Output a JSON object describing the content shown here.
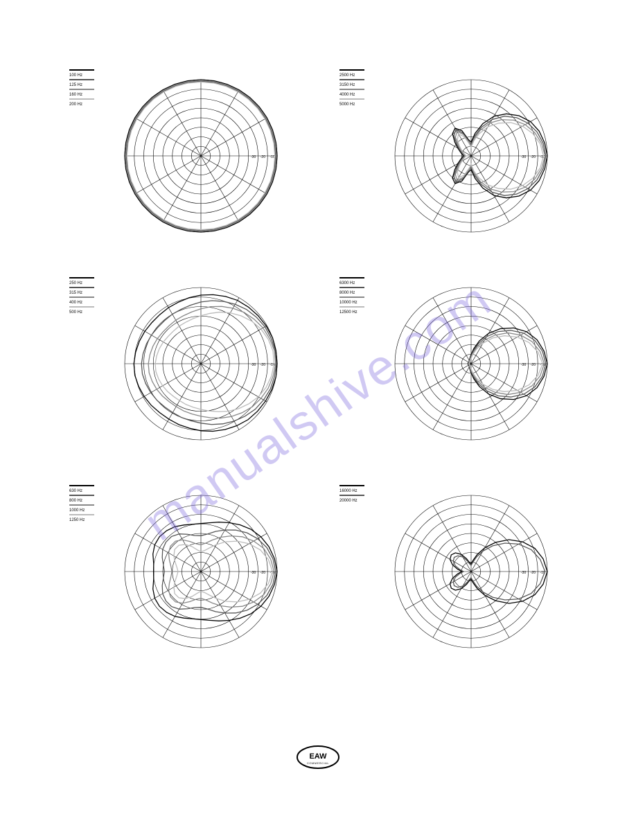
{
  "watermark_text": "manualshive.com",
  "watermark_color": "rgba(120,100,220,0.35)",
  "footer_logo_text": "EAW",
  "footer_logo_sub": "COMMERCIAL",
  "polar_grid": {
    "outer_radius": 110,
    "rings": 8,
    "spokes": 12,
    "stroke": "#000000",
    "stroke_width": 0.6,
    "tick_labels": [
      "-10",
      "-20",
      "-30"
    ],
    "tick_fontsize": 5
  },
  "series_colors": [
    "#000000",
    "#555555",
    "#888888",
    "#bbbbbb"
  ],
  "charts": [
    {
      "legend": [
        "100 Hz",
        "125 Hz",
        "160 Hz",
        "200 Hz"
      ],
      "series": [
        {
          "color": "#000000",
          "r": [
            1.0,
            1.0,
            1.0,
            1.0,
            1.0,
            1.0,
            1.0,
            1.0,
            1.0,
            1.0,
            1.0,
            1.0,
            1.0,
            1.0,
            1.0,
            1.0,
            1.0,
            1.0,
            1.0,
            1.0,
            1.0,
            1.0,
            1.0,
            1.0,
            1.0,
            1.0,
            1.0,
            1.0,
            1.0,
            1.0,
            1.0,
            1.0,
            1.0,
            1.0,
            1.0,
            1.0
          ]
        },
        {
          "color": "#555555",
          "r": [
            0.98,
            0.98,
            0.98,
            0.98,
            0.98,
            0.98,
            0.98,
            0.98,
            0.98,
            0.98,
            0.98,
            0.98,
            0.98,
            0.98,
            0.98,
            0.98,
            0.98,
            0.98,
            0.98,
            0.98,
            0.98,
            0.98,
            0.98,
            0.98,
            0.98,
            0.98,
            0.98,
            0.98,
            0.98,
            0.98,
            0.98,
            0.98,
            0.98,
            0.98,
            0.98,
            0.98
          ]
        },
        {
          "color": "#888888",
          "r": [
            0.99,
            0.99,
            0.99,
            0.99,
            0.99,
            0.99,
            0.99,
            0.99,
            0.99,
            0.99,
            0.99,
            0.99,
            0.99,
            0.99,
            0.99,
            0.99,
            0.99,
            0.99,
            0.99,
            0.99,
            0.99,
            0.99,
            0.99,
            0.99,
            0.99,
            0.99,
            0.99,
            0.99,
            0.99,
            0.99,
            0.99,
            0.99,
            0.99,
            0.99,
            0.99,
            0.99
          ]
        },
        {
          "color": "#bbbbbb",
          "r": [
            0.97,
            0.97,
            0.97,
            0.97,
            0.97,
            0.97,
            0.97,
            0.97,
            0.97,
            0.97,
            0.97,
            0.97,
            0.97,
            0.97,
            0.97,
            0.97,
            0.97,
            0.97,
            0.97,
            0.97,
            0.97,
            0.97,
            0.97,
            0.97,
            0.97,
            0.97,
            0.97,
            0.97,
            0.97,
            0.97,
            0.97,
            0.97,
            0.97,
            0.97,
            0.97,
            0.97
          ]
        }
      ]
    },
    {
      "legend": [
        "2500 Hz",
        "3150 Hz",
        "4000 Hz",
        "5000 Hz"
      ],
      "series": [
        {
          "color": "#000000",
          "r": [
            1.0,
            0.98,
            0.95,
            0.9,
            0.82,
            0.72,
            0.6,
            0.45,
            0.3,
            0.18,
            0.22,
            0.35,
            0.42,
            0.38,
            0.28,
            0.2,
            0.15,
            0.12,
            0.1,
            0.12,
            0.15,
            0.2,
            0.28,
            0.38,
            0.42,
            0.35,
            0.22,
            0.18,
            0.3,
            0.45,
            0.6,
            0.72,
            0.82,
            0.9,
            0.95,
            0.98
          ]
        },
        {
          "color": "#555555",
          "r": [
            0.98,
            0.96,
            0.92,
            0.86,
            0.78,
            0.68,
            0.55,
            0.4,
            0.26,
            0.15,
            0.2,
            0.32,
            0.4,
            0.35,
            0.25,
            0.18,
            0.13,
            0.1,
            0.08,
            0.1,
            0.13,
            0.18,
            0.25,
            0.35,
            0.4,
            0.32,
            0.2,
            0.15,
            0.26,
            0.4,
            0.55,
            0.68,
            0.78,
            0.86,
            0.92,
            0.96
          ]
        },
        {
          "color": "#888888",
          "r": [
            0.97,
            0.94,
            0.89,
            0.82,
            0.73,
            0.62,
            0.5,
            0.36,
            0.23,
            0.13,
            0.19,
            0.3,
            0.37,
            0.32,
            0.22,
            0.16,
            0.12,
            0.09,
            0.07,
            0.09,
            0.12,
            0.16,
            0.22,
            0.32,
            0.37,
            0.3,
            0.19,
            0.13,
            0.23,
            0.36,
            0.5,
            0.62,
            0.73,
            0.82,
            0.89,
            0.94
          ]
        },
        {
          "color": "#bbbbbb",
          "r": [
            0.95,
            0.92,
            0.86,
            0.78,
            0.68,
            0.56,
            0.44,
            0.31,
            0.2,
            0.11,
            0.17,
            0.27,
            0.33,
            0.28,
            0.2,
            0.14,
            0.1,
            0.08,
            0.06,
            0.08,
            0.1,
            0.14,
            0.2,
            0.28,
            0.33,
            0.27,
            0.17,
            0.11,
            0.2,
            0.31,
            0.44,
            0.56,
            0.68,
            0.78,
            0.86,
            0.92
          ]
        }
      ]
    },
    {
      "legend": [
        "250 Hz",
        "315 Hz",
        "400 Hz",
        "500 Hz"
      ],
      "series": [
        {
          "color": "#000000",
          "r": [
            1.0,
            1.0,
            0.99,
            0.98,
            0.97,
            0.96,
            0.94,
            0.92,
            0.9,
            0.88,
            0.86,
            0.85,
            0.84,
            0.84,
            0.85,
            0.86,
            0.87,
            0.88,
            0.88,
            0.87,
            0.86,
            0.85,
            0.84,
            0.84,
            0.85,
            0.86,
            0.88,
            0.9,
            0.92,
            0.94,
            0.96,
            0.97,
            0.98,
            0.99,
            1.0,
            1.0
          ]
        },
        {
          "color": "#555555",
          "r": [
            0.99,
            0.98,
            0.97,
            0.95,
            0.93,
            0.9,
            0.87,
            0.84,
            0.81,
            0.78,
            0.76,
            0.75,
            0.74,
            0.74,
            0.75,
            0.76,
            0.77,
            0.78,
            0.78,
            0.77,
            0.76,
            0.75,
            0.74,
            0.74,
            0.75,
            0.76,
            0.78,
            0.81,
            0.84,
            0.87,
            0.9,
            0.93,
            0.95,
            0.97,
            0.98,
            0.99
          ]
        },
        {
          "color": "#888888",
          "r": [
            0.98,
            0.96,
            0.94,
            0.91,
            0.88,
            0.84,
            0.8,
            0.76,
            0.72,
            0.69,
            0.67,
            0.66,
            0.65,
            0.65,
            0.66,
            0.67,
            0.68,
            0.69,
            0.69,
            0.68,
            0.67,
            0.66,
            0.65,
            0.65,
            0.66,
            0.67,
            0.69,
            0.72,
            0.76,
            0.8,
            0.84,
            0.88,
            0.91,
            0.94,
            0.96,
            0.98
          ]
        },
        {
          "color": "#bbbbbb",
          "r": [
            0.96,
            0.94,
            0.91,
            0.87,
            0.82,
            0.77,
            0.72,
            0.67,
            0.63,
            0.6,
            0.58,
            0.57,
            0.56,
            0.56,
            0.57,
            0.58,
            0.59,
            0.6,
            0.6,
            0.59,
            0.58,
            0.57,
            0.56,
            0.56,
            0.57,
            0.58,
            0.6,
            0.63,
            0.67,
            0.72,
            0.77,
            0.82,
            0.87,
            0.91,
            0.94,
            0.96
          ]
        }
      ]
    },
    {
      "legend": [
        "6300 Hz",
        "8000 Hz",
        "10000 Hz",
        "12500 Hz"
      ],
      "series": [
        {
          "color": "#000000",
          "r": [
            1.0,
            0.97,
            0.92,
            0.84,
            0.73,
            0.6,
            0.46,
            0.32,
            0.2,
            0.12,
            0.08,
            0.06,
            0.05,
            0.04,
            0.04,
            0.04,
            0.04,
            0.04,
            0.04,
            0.04,
            0.04,
            0.04,
            0.04,
            0.04,
            0.05,
            0.06,
            0.08,
            0.12,
            0.2,
            0.32,
            0.46,
            0.6,
            0.73,
            0.84,
            0.92,
            0.97
          ]
        },
        {
          "color": "#555555",
          "r": [
            0.98,
            0.95,
            0.89,
            0.8,
            0.68,
            0.55,
            0.41,
            0.28,
            0.17,
            0.1,
            0.07,
            0.05,
            0.04,
            0.04,
            0.03,
            0.03,
            0.03,
            0.03,
            0.03,
            0.03,
            0.03,
            0.03,
            0.04,
            0.04,
            0.04,
            0.05,
            0.07,
            0.1,
            0.17,
            0.28,
            0.41,
            0.55,
            0.68,
            0.8,
            0.89,
            0.95
          ]
        },
        {
          "color": "#888888",
          "r": [
            0.96,
            0.92,
            0.85,
            0.75,
            0.63,
            0.49,
            0.36,
            0.24,
            0.14,
            0.09,
            0.06,
            0.05,
            0.04,
            0.03,
            0.03,
            0.03,
            0.03,
            0.03,
            0.03,
            0.03,
            0.03,
            0.03,
            0.03,
            0.03,
            0.04,
            0.05,
            0.06,
            0.09,
            0.14,
            0.24,
            0.36,
            0.49,
            0.63,
            0.75,
            0.85,
            0.92
          ]
        },
        {
          "color": "#bbbbbb",
          "r": [
            0.94,
            0.89,
            0.81,
            0.7,
            0.57,
            0.44,
            0.31,
            0.2,
            0.12,
            0.07,
            0.05,
            0.04,
            0.03,
            0.03,
            0.03,
            0.03,
            0.03,
            0.03,
            0.03,
            0.03,
            0.03,
            0.03,
            0.03,
            0.03,
            0.03,
            0.04,
            0.05,
            0.07,
            0.12,
            0.2,
            0.31,
            0.44,
            0.57,
            0.7,
            0.81,
            0.89
          ]
        }
      ]
    },
    {
      "legend": [
        "630 Hz",
        "800 Hz",
        "1000 Hz",
        "1250 Hz"
      ],
      "series": [
        {
          "color": "#000000",
          "r": [
            1.0,
            0.98,
            0.95,
            0.91,
            0.86,
            0.8,
            0.74,
            0.69,
            0.65,
            0.63,
            0.63,
            0.65,
            0.68,
            0.7,
            0.71,
            0.7,
            0.67,
            0.63,
            0.62,
            0.63,
            0.67,
            0.7,
            0.71,
            0.7,
            0.68,
            0.65,
            0.63,
            0.63,
            0.65,
            0.69,
            0.74,
            0.8,
            0.86,
            0.91,
            0.95,
            0.98
          ]
        },
        {
          "color": "#555555",
          "r": [
            0.98,
            0.96,
            0.92,
            0.86,
            0.79,
            0.71,
            0.63,
            0.56,
            0.5,
            0.47,
            0.48,
            0.52,
            0.57,
            0.6,
            0.6,
            0.58,
            0.54,
            0.5,
            0.48,
            0.5,
            0.54,
            0.58,
            0.6,
            0.6,
            0.57,
            0.52,
            0.48,
            0.47,
            0.5,
            0.56,
            0.63,
            0.71,
            0.79,
            0.86,
            0.92,
            0.96
          ]
        },
        {
          "color": "#888888",
          "r": [
            0.96,
            0.93,
            0.88,
            0.8,
            0.71,
            0.61,
            0.52,
            0.44,
            0.38,
            0.35,
            0.37,
            0.42,
            0.48,
            0.52,
            0.52,
            0.49,
            0.44,
            0.4,
            0.38,
            0.4,
            0.44,
            0.49,
            0.52,
            0.52,
            0.48,
            0.42,
            0.37,
            0.35,
            0.38,
            0.44,
            0.52,
            0.61,
            0.71,
            0.8,
            0.88,
            0.93
          ]
        },
        {
          "color": "#bbbbbb",
          "r": [
            0.94,
            0.9,
            0.83,
            0.73,
            0.62,
            0.51,
            0.41,
            0.33,
            0.28,
            0.26,
            0.29,
            0.35,
            0.41,
            0.45,
            0.45,
            0.41,
            0.36,
            0.32,
            0.3,
            0.32,
            0.36,
            0.41,
            0.45,
            0.45,
            0.41,
            0.35,
            0.29,
            0.26,
            0.28,
            0.33,
            0.41,
            0.51,
            0.62,
            0.73,
            0.83,
            0.9
          ]
        }
      ]
    },
    {
      "legend": [
        "16000 Hz",
        "20000 Hz"
      ],
      "series": [
        {
          "color": "#000000",
          "r": [
            1.0,
            0.96,
            0.89,
            0.78,
            0.65,
            0.5,
            0.36,
            0.24,
            0.15,
            0.1,
            0.12,
            0.18,
            0.26,
            0.32,
            0.34,
            0.32,
            0.26,
            0.18,
            0.12,
            0.18,
            0.26,
            0.32,
            0.34,
            0.32,
            0.26,
            0.18,
            0.12,
            0.1,
            0.15,
            0.24,
            0.36,
            0.5,
            0.65,
            0.78,
            0.89,
            0.96
          ]
        },
        {
          "color": "#555555",
          "r": [
            0.97,
            0.92,
            0.84,
            0.72,
            0.58,
            0.44,
            0.31,
            0.2,
            0.12,
            0.08,
            0.1,
            0.15,
            0.22,
            0.27,
            0.29,
            0.27,
            0.22,
            0.15,
            0.1,
            0.15,
            0.22,
            0.27,
            0.29,
            0.27,
            0.22,
            0.15,
            0.1,
            0.08,
            0.12,
            0.2,
            0.31,
            0.44,
            0.58,
            0.72,
            0.84,
            0.92
          ]
        }
      ]
    }
  ]
}
